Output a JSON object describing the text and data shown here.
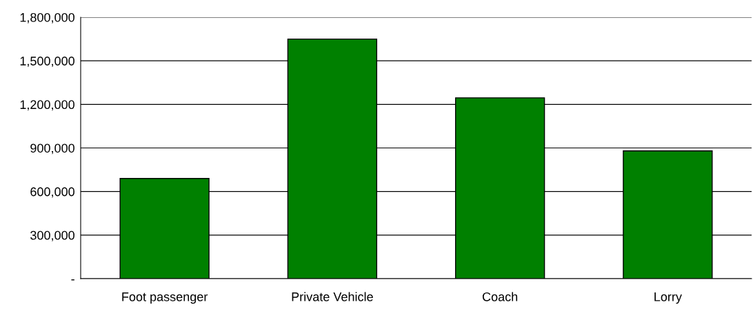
{
  "chart_data": {
    "type": "bar",
    "categories": [
      "Foot passenger",
      "Private Vehicle",
      "Coach",
      "Lorry"
    ],
    "values": [
      690000,
      1650000,
      1245000,
      880000
    ],
    "color": "#008000",
    "ylim": [
      0,
      1800000
    ],
    "yticks": [
      {
        "value": 0,
        "label": "-"
      },
      {
        "value": 300000,
        "label": "300,000"
      },
      {
        "value": 600000,
        "label": "600,000"
      },
      {
        "value": 900000,
        "label": "900,000"
      },
      {
        "value": 1200000,
        "label": "1,200,000"
      },
      {
        "value": 1500000,
        "label": "1,500,000"
      },
      {
        "value": 1800000,
        "label": "1,800,000"
      }
    ],
    "grid": "y"
  }
}
